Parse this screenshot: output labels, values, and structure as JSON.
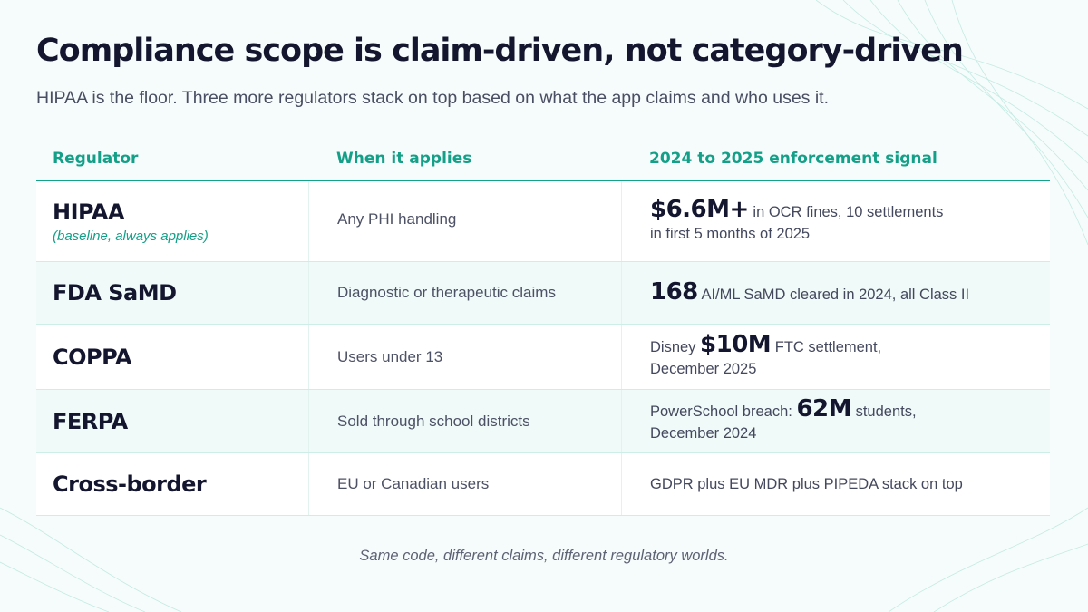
{
  "slide": {
    "title": "Compliance scope is claim-driven, not category-driven",
    "subtitle": "HIPAA is the floor. Three more regulators stack on top based on what the app claims and who uses it.",
    "footer": "Same code, different claims, different regulatory worlds."
  },
  "table": {
    "headers": {
      "regulator": "Regulator",
      "applies": "When it applies",
      "signal": "2024 to 2025 enforcement signal"
    },
    "rows": [
      {
        "regulator": "HIPAA",
        "note": "(baseline, always applies)",
        "applies": "Any PHI handling",
        "signal_pre": "",
        "signal_big": "$6.6M+",
        "signal_post": " in OCR fines, 10 settlements",
        "signal_line2": "in first 5 months of 2025"
      },
      {
        "regulator": "FDA SaMD",
        "note": "",
        "applies": "Diagnostic or therapeutic claims",
        "signal_pre": "",
        "signal_big": "168",
        "signal_post": " AI/ML SaMD cleared in 2024, all Class II",
        "signal_line2": ""
      },
      {
        "regulator": "COPPA",
        "note": "",
        "applies": "Users under 13",
        "signal_pre": "Disney ",
        "signal_big": "$10M",
        "signal_post": " FTC settlement,",
        "signal_line2": "December 2025"
      },
      {
        "regulator": "FERPA",
        "note": "",
        "applies": "Sold through school districts",
        "signal_pre": "PowerSchool breach: ",
        "signal_big": "62M",
        "signal_post": " students,",
        "signal_line2": "December 2024"
      },
      {
        "regulator": "Cross-border",
        "note": "",
        "applies": "EU or Canadian users",
        "signal_pre": "GDPR plus EU MDR plus PIPEDA stack on top",
        "signal_big": "",
        "signal_post": "",
        "signal_line2": ""
      }
    ]
  },
  "colors": {
    "accent": "#14a088",
    "title": "#13162e",
    "background": "#f6fcfb"
  }
}
